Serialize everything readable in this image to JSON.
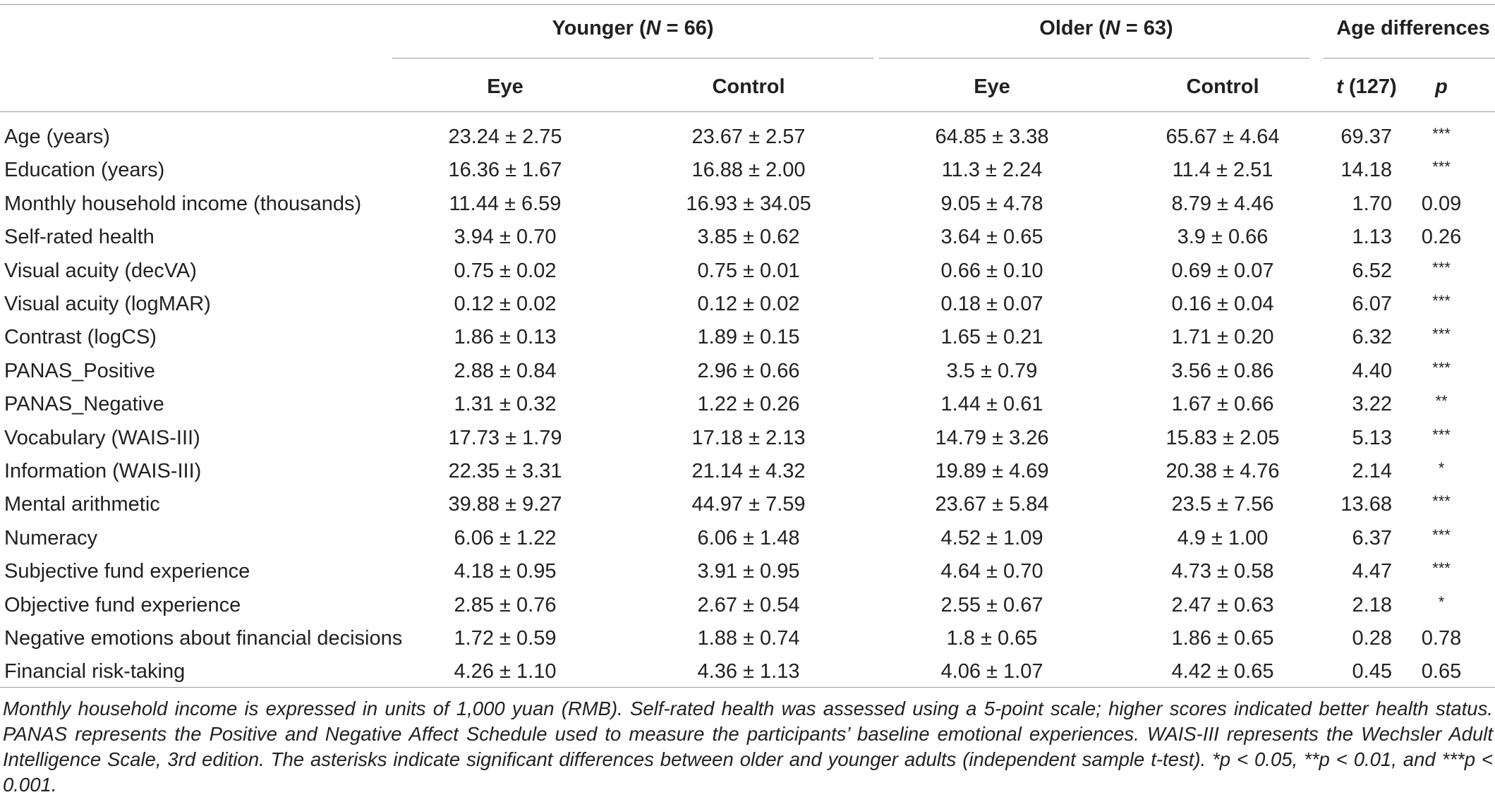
{
  "header": {
    "younger": {
      "label": "Younger (",
      "n_italic": "N",
      "rest": " = 66)"
    },
    "older": {
      "label": "Older (",
      "n_italic": "N",
      "rest": " = 63)"
    },
    "age_diff": "Age differences",
    "cols": {
      "eye1": "Eye",
      "control1": "Control",
      "eye2": "Eye",
      "control2": "Control",
      "t_italic": "t",
      "t_rest": " (127)",
      "p": "p"
    }
  },
  "rows": [
    {
      "label": "Age (years)",
      "ye": "23.24 ± 2.75",
      "yc": "23.67 ± 2.57",
      "oe": "64.85 ± 3.38",
      "oc": "65.67 ± 4.64",
      "t": "69.37",
      "p": "***"
    },
    {
      "label": "Education (years)",
      "ye": "16.36 ± 1.67",
      "yc": "16.88 ± 2.00",
      "oe": "11.3 ± 2.24",
      "oc": "11.4 ± 2.51",
      "t": "14.18",
      "p": "***"
    },
    {
      "label": "Monthly household income (thousands)",
      "ye": "11.44 ± 6.59",
      "yc": "16.93 ± 34.05",
      "oe": "9.05 ± 4.78",
      "oc": "8.79 ± 4.46",
      "t": "1.70",
      "p": "0.09"
    },
    {
      "label": "Self-rated health",
      "ye": "3.94 ± 0.70",
      "yc": "3.85 ± 0.62",
      "oe": "3.64 ± 0.65",
      "oc": "3.9 ± 0.66",
      "t": "1.13",
      "p": "0.26"
    },
    {
      "label": "Visual acuity (decVA)",
      "ye": "0.75 ± 0.02",
      "yc": "0.75 ± 0.01",
      "oe": "0.66 ± 0.10",
      "oc": "0.69 ± 0.07",
      "t": "6.52",
      "p": "***"
    },
    {
      "label": "Visual acuity (logMAR)",
      "ye": "0.12 ± 0.02",
      "yc": "0.12 ± 0.02",
      "oe": "0.18 ± 0.07",
      "oc": "0.16 ± 0.04",
      "t": "6.07",
      "p": "***"
    },
    {
      "label": "Contrast (logCS)",
      "ye": "1.86 ± 0.13",
      "yc": "1.89 ± 0.15",
      "oe": "1.65 ± 0.21",
      "oc": "1.71 ± 0.20",
      "t": "6.32",
      "p": "***"
    },
    {
      "label": "PANAS_Positive",
      "ye": "2.88 ± 0.84",
      "yc": "2.96 ± 0.66",
      "oe": "3.5 ± 0.79",
      "oc": "3.56 ± 0.86",
      "t": "4.40",
      "p": "***"
    },
    {
      "label": "PANAS_Negative",
      "ye": "1.31 ± 0.32",
      "yc": "1.22 ± 0.26",
      "oe": "1.44 ± 0.61",
      "oc": "1.67 ± 0.66",
      "t": "3.22",
      "p": "**"
    },
    {
      "label": "Vocabulary (WAIS-III)",
      "ye": "17.73 ± 1.79",
      "yc": "17.18 ± 2.13",
      "oe": "14.79 ± 3.26",
      "oc": "15.83 ± 2.05",
      "t": "5.13",
      "p": "***"
    },
    {
      "label": "Information (WAIS-III)",
      "ye": "22.35 ± 3.31",
      "yc": "21.14 ± 4.32",
      "oe": "19.89 ± 4.69",
      "oc": "20.38 ± 4.76",
      "t": "2.14",
      "p": "*"
    },
    {
      "label": "Mental arithmetic",
      "ye": "39.88 ± 9.27",
      "yc": "44.97 ± 7.59",
      "oe": "23.67 ± 5.84",
      "oc": "23.5 ± 7.56",
      "t": "13.68",
      "p": "***"
    },
    {
      "label": "Numeracy",
      "ye": "6.06 ± 1.22",
      "yc": "6.06 ± 1.48",
      "oe": "4.52 ± 1.09",
      "oc": "4.9 ± 1.00",
      "t": "6.37",
      "p": "***"
    },
    {
      "label": "Subjective fund experience",
      "ye": "4.18 ± 0.95",
      "yc": "3.91 ± 0.95",
      "oe": "4.64 ± 0.70",
      "oc": "4.73 ± 0.58",
      "t": "4.47",
      "p": "***"
    },
    {
      "label": "Objective fund experience",
      "ye": "2.85 ± 0.76",
      "yc": "2.67 ± 0.54",
      "oe": "2.55 ± 0.67",
      "oc": "2.47 ± 0.63",
      "t": "2.18",
      "p": "*"
    },
    {
      "label": "Negative emotions about financial decisions",
      "ye": "1.72 ± 0.59",
      "yc": "1.88 ± 0.74",
      "oe": "1.8 ± 0.65",
      "oc": "1.86 ± 0.65",
      "t": "0.28",
      "p": "0.78"
    },
    {
      "label": "Financial risk-taking",
      "ye": "4.26 ± 1.10",
      "yc": "4.36 ± 1.13",
      "oe": "4.06 ± 1.07",
      "oc": "4.42 ± 0.65",
      "t": "0.45",
      "p": "0.65"
    }
  ],
  "footnote": "Monthly household income is expressed in units of 1,000 yuan (RMB). Self-rated health was assessed using a 5-point scale; higher scores indicated better health status. PANAS represents the Positive and Negative Affect Schedule used to measure the participants’ baseline emotional experiences. WAIS-III represents the Wechsler Adult Intelligence Scale, 3rd edition. The asterisks indicate significant differences between older and younger adults (independent sample t-test). *p < 0.05, **p < 0.01, and ***p < 0.001."
}
